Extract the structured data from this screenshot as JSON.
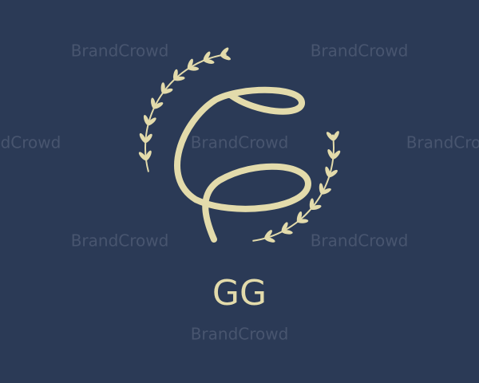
{
  "logo": {
    "monogram": "GG"
  },
  "watermarks": [
    "BrandCrowd",
    "BrandCrowd",
    "BrandCrowd",
    "BrandCrowd",
    "BrandCrowd",
    "BrandCrowd",
    "BrandCrowd",
    "BrandCrowd"
  ]
}
